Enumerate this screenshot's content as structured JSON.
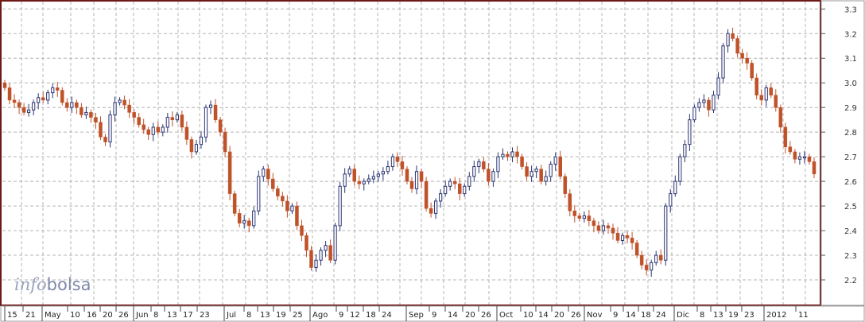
{
  "brand": {
    "logo_part1": "info",
    "logo_part2": "bolsa"
  },
  "colors": {
    "up": "#2b3572",
    "down": "#c0522a",
    "frame": "#6e1818",
    "grid": "#b4b4b4"
  },
  "chart_data": {
    "type": "candlestick",
    "title": "",
    "xlabel": "",
    "ylabel": "",
    "ylim": [
      2.1,
      3.33
    ],
    "grid": true,
    "y_axis_position": "right",
    "y_ticks": [
      "3.3",
      "3.2",
      "3.1",
      "3.0",
      "2.9",
      "2.8",
      "2.7",
      "2.6",
      "2.5",
      "2.4",
      "2.3",
      "2.2"
    ],
    "x_tick_labels": [
      "15",
      "21",
      "May",
      "10",
      "16",
      "20",
      "26",
      "Jun",
      "8",
      "13",
      "17",
      "23",
      "Jul",
      "8",
      "13",
      "19",
      "25",
      "Ago",
      "9",
      "12",
      "18",
      "24",
      "Sep",
      "9",
      "14",
      "20",
      "26",
      "Oct",
      "10",
      "14",
      "20",
      "26",
      "Nov",
      "9",
      "14",
      "18",
      "24",
      "Dic",
      "8",
      "13",
      "19",
      "23",
      "2012",
      "11"
    ],
    "close": [
      2.98,
      2.93,
      2.92,
      2.9,
      2.88,
      2.89,
      2.92,
      2.94,
      2.93,
      2.96,
      2.98,
      2.97,
      2.92,
      2.9,
      2.92,
      2.9,
      2.87,
      2.88,
      2.86,
      2.84,
      2.78,
      2.76,
      2.87,
      2.92,
      2.93,
      2.91,
      2.88,
      2.86,
      2.83,
      2.81,
      2.79,
      2.82,
      2.8,
      2.82,
      2.86,
      2.85,
      2.87,
      2.82,
      2.77,
      2.72,
      2.75,
      2.78,
      2.9,
      2.91,
      2.85,
      2.8,
      2.72,
      2.55,
      2.47,
      2.43,
      2.44,
      2.42,
      2.48,
      2.62,
      2.65,
      2.61,
      2.57,
      2.54,
      2.52,
      2.48,
      2.5,
      2.42,
      2.38,
      2.32,
      2.25,
      2.28,
      2.32,
      2.34,
      2.28,
      2.42,
      2.58,
      2.63,
      2.65,
      2.6,
      2.59,
      2.6,
      2.61,
      2.62,
      2.63,
      2.64,
      2.66,
      2.7,
      2.68,
      2.65,
      2.6,
      2.57,
      2.64,
      2.6,
      2.49,
      2.47,
      2.52,
      2.55,
      2.58,
      2.6,
      2.59,
      2.55,
      2.58,
      2.62,
      2.66,
      2.68,
      2.65,
      2.6,
      2.64,
      2.7,
      2.71,
      2.7,
      2.72,
      2.7,
      2.66,
      2.62,
      2.64,
      2.65,
      2.6,
      2.62,
      2.67,
      2.7,
      2.62,
      2.55,
      2.48,
      2.46,
      2.45,
      2.46,
      2.44,
      2.42,
      2.4,
      2.42,
      2.41,
      2.39,
      2.36,
      2.38,
      2.37,
      2.35,
      2.3,
      2.26,
      2.24,
      2.27,
      2.3,
      2.28,
      2.5,
      2.55,
      2.6,
      2.7,
      2.75,
      2.85,
      2.9,
      2.92,
      2.93,
      2.89,
      2.95,
      3.02,
      3.15,
      3.2,
      3.18,
      3.12,
      3.1,
      3.08,
      3.02,
      2.95,
      2.93,
      2.98,
      2.95,
      2.9,
      2.82,
      2.74,
      2.72,
      2.69,
      2.7,
      2.7,
      2.68,
      2.63
    ],
    "y_ohlc_note": ""
  }
}
